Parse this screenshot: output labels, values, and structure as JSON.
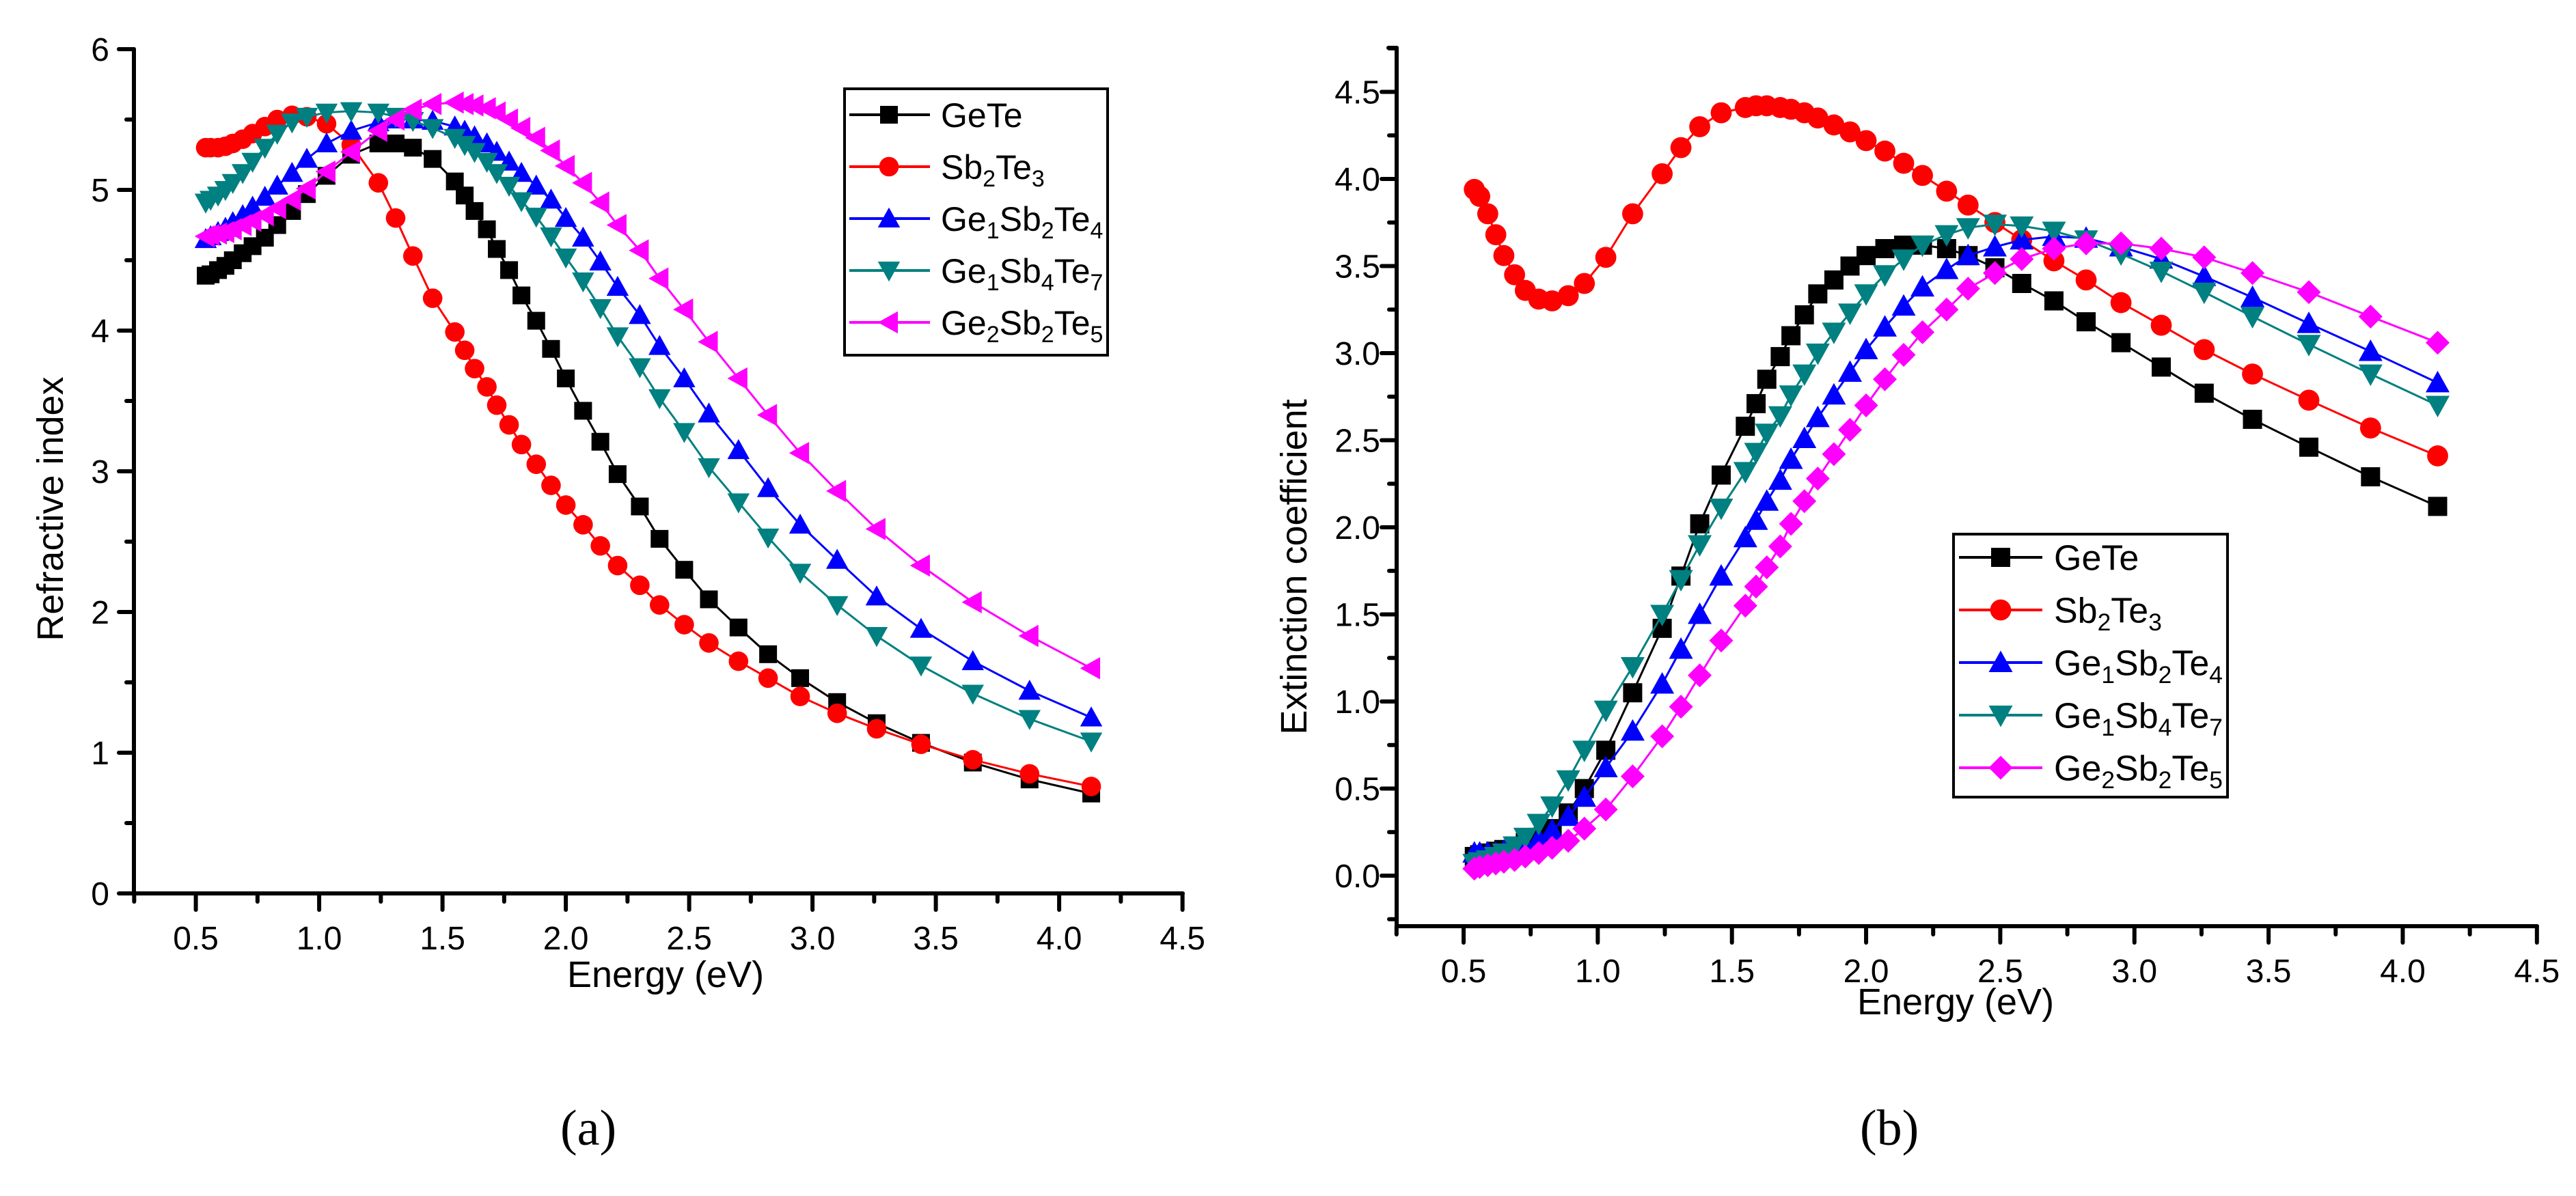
{
  "panel_labels": {
    "a": "(a)",
    "b": "(b)"
  },
  "chart_data": [
    {
      "type": "line",
      "panel": "(a)",
      "title": "",
      "xlabel": "Energy (eV)",
      "ylabel": "Refractive index",
      "xlim": [
        0.25,
        4.5
      ],
      "ylim": [
        0,
        6
      ],
      "xticks": [
        "0.5",
        "1.0",
        "1.5",
        "2.0",
        "2.5",
        "3.0",
        "3.5",
        "4.0",
        "4.5"
      ],
      "yticks": [
        "0",
        "1",
        "2",
        "3",
        "4",
        "5",
        "6"
      ],
      "grid": false,
      "legend_position": "top-right",
      "x": [
        4.13,
        3.88,
        3.65,
        3.44,
        3.26,
        3.1,
        2.95,
        2.82,
        2.7,
        2.58,
        2.48,
        2.38,
        2.3,
        2.21,
        2.14,
        2.07,
        2.0,
        1.94,
        1.88,
        1.82,
        1.77,
        1.72,
        1.68,
        1.63,
        1.59,
        1.55,
        1.46,
        1.38,
        1.31,
        1.24,
        1.13,
        1.03,
        0.95,
        0.89,
        0.83,
        0.78,
        0.73,
        0.69,
        0.65,
        0.62,
        0.59,
        0.56,
        0.54
      ],
      "series": [
        {
          "name": "GeTe",
          "color": "#000000",
          "marker": "square",
          "values": [
            0.71,
            0.81,
            0.93,
            1.07,
            1.21,
            1.36,
            1.53,
            1.7,
            1.89,
            2.09,
            2.3,
            2.52,
            2.75,
            2.98,
            3.21,
            3.43,
            3.66,
            3.87,
            4.07,
            4.25,
            4.43,
            4.58,
            4.72,
            4.85,
            4.96,
            5.06,
            5.22,
            5.3,
            5.33,
            5.33,
            5.25,
            5.1,
            4.97,
            4.85,
            4.75,
            4.66,
            4.6,
            4.55,
            4.5,
            4.46,
            4.43,
            4.4,
            4.39
          ]
        },
        {
          "name": "Sb2Te3",
          "color": "#ff0000",
          "marker": "circle",
          "values": [
            0.76,
            0.85,
            0.95,
            1.06,
            1.17,
            1.28,
            1.4,
            1.53,
            1.65,
            1.78,
            1.91,
            2.05,
            2.19,
            2.33,
            2.47,
            2.62,
            2.76,
            2.9,
            3.05,
            3.19,
            3.33,
            3.47,
            3.6,
            3.73,
            3.86,
            3.99,
            4.23,
            4.53,
            4.8,
            5.05,
            5.32,
            5.47,
            5.52,
            5.53,
            5.5,
            5.45,
            5.4,
            5.36,
            5.33,
            5.31,
            5.3,
            5.3,
            5.3
          ]
        },
        {
          "name": "Ge1Sb2Te4",
          "color": "#0000ff",
          "marker": "triangle-up",
          "values": [
            1.25,
            1.44,
            1.65,
            1.88,
            2.11,
            2.37,
            2.62,
            2.88,
            3.15,
            3.41,
            3.66,
            3.89,
            4.11,
            4.31,
            4.49,
            4.66,
            4.8,
            4.93,
            5.03,
            5.12,
            5.2,
            5.27,
            5.33,
            5.38,
            5.42,
            5.45,
            5.49,
            5.5,
            5.5,
            5.48,
            5.42,
            5.33,
            5.22,
            5.12,
            5.03,
            4.95,
            4.88,
            4.82,
            4.77,
            4.73,
            4.7,
            4.67,
            4.65
          ]
        },
        {
          "name": "Ge1Sb4Te7",
          "color": "#008080",
          "marker": "triangle-down",
          "values": [
            1.08,
            1.24,
            1.42,
            1.62,
            1.83,
            2.05,
            2.28,
            2.53,
            2.78,
            3.03,
            3.28,
            3.52,
            3.74,
            3.96,
            4.16,
            4.35,
            4.52,
            4.67,
            4.81,
            4.92,
            5.03,
            5.12,
            5.2,
            5.27,
            5.32,
            5.37,
            5.44,
            5.49,
            5.52,
            5.55,
            5.56,
            5.55,
            5.52,
            5.48,
            5.4,
            5.3,
            5.2,
            5.12,
            5.05,
            5.0,
            4.96,
            4.93,
            4.91
          ]
        },
        {
          "name": "Ge2Sb2Te5",
          "color": "#ff00ff",
          "marker": "triangle-left",
          "values": [
            1.6,
            1.83,
            2.07,
            2.33,
            2.59,
            2.86,
            3.13,
            3.4,
            3.66,
            3.92,
            4.15,
            4.37,
            4.57,
            4.75,
            4.91,
            5.05,
            5.17,
            5.28,
            5.37,
            5.44,
            5.5,
            5.55,
            5.58,
            5.6,
            5.61,
            5.62,
            5.61,
            5.57,
            5.5,
            5.42,
            5.27,
            5.13,
            5.01,
            4.93,
            4.87,
            4.82,
            4.78,
            4.75,
            4.72,
            4.7,
            4.69,
            4.68,
            4.67
          ]
        }
      ]
    },
    {
      "type": "line",
      "panel": "(b)",
      "title": "",
      "xlabel": "Energy (eV)",
      "ylabel": "Extinction coefficient",
      "xlim": [
        0.25,
        4.5
      ],
      "ylim": [
        -0.29,
        4.75
      ],
      "xticks": [
        "0.5",
        "1.0",
        "1.5",
        "2.0",
        "2.5",
        "3.0",
        "3.5",
        "4.0",
        "4.5"
      ],
      "yticks": [
        "0.0",
        "0.5",
        "1.0",
        "1.5",
        "2.0",
        "2.5",
        "3.0",
        "3.5",
        "4.0",
        "4.5"
      ],
      "grid": false,
      "legend_position": "bottom-center",
      "x": [
        4.13,
        3.88,
        3.65,
        3.44,
        3.26,
        3.1,
        2.95,
        2.82,
        2.7,
        2.58,
        2.48,
        2.38,
        2.3,
        2.21,
        2.14,
        2.07,
        2.0,
        1.94,
        1.88,
        1.82,
        1.77,
        1.72,
        1.68,
        1.63,
        1.59,
        1.55,
        1.46,
        1.38,
        1.31,
        1.24,
        1.13,
        1.03,
        0.95,
        0.89,
        0.83,
        0.78,
        0.73,
        0.69,
        0.65,
        0.62,
        0.59,
        0.56,
        0.54
      ],
      "series": [
        {
          "name": "GeTe",
          "color": "#000000",
          "marker": "square",
          "values": [
            2.12,
            2.29,
            2.46,
            2.62,
            2.77,
            2.92,
            3.06,
            3.18,
            3.3,
            3.4,
            3.49,
            3.56,
            3.6,
            3.62,
            3.62,
            3.6,
            3.56,
            3.5,
            3.42,
            3.34,
            3.22,
            3.1,
            2.98,
            2.85,
            2.71,
            2.58,
            2.3,
            2.02,
            1.72,
            1.42,
            1.05,
            0.72,
            0.5,
            0.36,
            0.27,
            0.22,
            0.19,
            0.17,
            0.15,
            0.14,
            0.13,
            0.12,
            0.11
          ]
        },
        {
          "name": "Sb2Te3",
          "color": "#ff0000",
          "marker": "circle",
          "values": [
            2.41,
            2.57,
            2.73,
            2.88,
            3.02,
            3.16,
            3.29,
            3.42,
            3.53,
            3.65,
            3.75,
            3.85,
            3.93,
            4.02,
            4.09,
            4.16,
            4.22,
            4.27,
            4.31,
            4.35,
            4.38,
            4.4,
            4.41,
            4.42,
            4.42,
            4.41,
            4.38,
            4.3,
            4.18,
            4.03,
            3.8,
            3.55,
            3.4,
            3.33,
            3.3,
            3.31,
            3.36,
            3.45,
            3.56,
            3.68,
            3.8,
            3.9,
            3.94
          ]
        },
        {
          "name": "Ge1Sb2Te4",
          "color": "#0000ff",
          "marker": "triangle-up",
          "values": [
            2.83,
            3.01,
            3.17,
            3.32,
            3.44,
            3.54,
            3.61,
            3.66,
            3.67,
            3.65,
            3.61,
            3.56,
            3.48,
            3.38,
            3.27,
            3.15,
            3.02,
            2.89,
            2.76,
            2.63,
            2.51,
            2.39,
            2.27,
            2.15,
            2.04,
            1.94,
            1.72,
            1.5,
            1.3,
            1.1,
            0.83,
            0.62,
            0.45,
            0.34,
            0.26,
            0.21,
            0.17,
            0.15,
            0.14,
            0.13,
            0.13,
            0.13,
            0.13
          ]
        },
        {
          "name": "Ge1Sb4Te7",
          "color": "#008080",
          "marker": "triangle-down",
          "values": [
            2.7,
            2.88,
            3.05,
            3.21,
            3.35,
            3.47,
            3.57,
            3.65,
            3.7,
            3.73,
            3.74,
            3.72,
            3.68,
            3.62,
            3.54,
            3.45,
            3.34,
            3.23,
            3.12,
            3.0,
            2.88,
            2.76,
            2.64,
            2.54,
            2.43,
            2.32,
            2.11,
            1.9,
            1.7,
            1.5,
            1.2,
            0.95,
            0.72,
            0.55,
            0.4,
            0.3,
            0.22,
            0.17,
            0.13,
            0.11,
            0.09,
            0.08,
            0.07
          ]
        },
        {
          "name": "Ge2Sb2Te5",
          "color": "#ff00ff",
          "marker": "diamond",
          "values": [
            3.06,
            3.21,
            3.35,
            3.46,
            3.55,
            3.6,
            3.63,
            3.63,
            3.6,
            3.54,
            3.46,
            3.37,
            3.25,
            3.12,
            2.99,
            2.85,
            2.7,
            2.56,
            2.42,
            2.28,
            2.15,
            2.02,
            1.89,
            1.77,
            1.66,
            1.55,
            1.35,
            1.15,
            0.97,
            0.8,
            0.57,
            0.38,
            0.27,
            0.2,
            0.16,
            0.13,
            0.11,
            0.09,
            0.08,
            0.07,
            0.06,
            0.05,
            0.04
          ]
        }
      ]
    }
  ]
}
